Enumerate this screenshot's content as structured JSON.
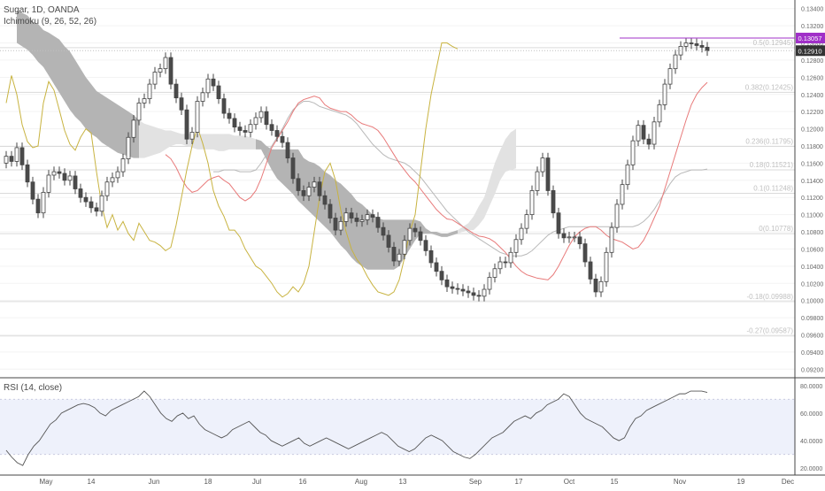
{
  "header": {
    "symbol_line": "Sugar, 1D, OANDA",
    "ichimoku_label": "Ichimoku (9, 26, 52, 26)",
    "rsi_label": "RSI (14, close)"
  },
  "price_badges": {
    "upper": "0.13057",
    "last": "0.12910"
  },
  "colors": {
    "up_candle": "#ffffff",
    "down_candle": "#4a4a4a",
    "conversion_line": "#e87a7a",
    "base_line": "#b9b9b9",
    "lagging_span": "#c8b340",
    "cloud_bear": "#b4b4b4",
    "cloud_bull": "#e2e2e2",
    "rsi_line": "#555555",
    "rsi_band": "#eef1fb",
    "fib_line": "#dadada",
    "badge_purple": "#a030c8",
    "badge_dark": "#333333"
  },
  "chart_data": {
    "type": "candlestick",
    "price_axis": {
      "ylim": [
        0.091,
        0.135
      ],
      "ticks": [
        "0.13400",
        "0.13200",
        "0.13000",
        "0.12800",
        "0.12600",
        "0.12400",
        "0.12200",
        "0.12000",
        "0.11800",
        "0.11600",
        "0.11400",
        "0.11200",
        "0.11000",
        "0.10800",
        "0.10600",
        "0.10400",
        "0.10200",
        "0.10000",
        "0.09800",
        "0.09600",
        "0.09400",
        "0.09200"
      ]
    },
    "rsi_axis": {
      "ticks": [
        "80.0000",
        "60.0000",
        "40.0000",
        "20.0000"
      ],
      "band": [
        30,
        70
      ]
    },
    "x_axis": {
      "labels": [
        "May",
        "14",
        "Jun",
        "18",
        "Jul",
        "16",
        "Aug",
        "13",
        "Sep",
        "17",
        "Oct",
        "15",
        "Nov",
        "19",
        "Dec"
      ]
    },
    "fib_levels": [
      {
        "label": "0.5(0.12945)",
        "value": 0.12945
      },
      {
        "label": "0.382(0.12425)",
        "value": 0.12425
      },
      {
        "label": "0.236(0.11795)",
        "value": 0.11795
      },
      {
        "label": "0.18(0.11521)",
        "value": 0.11521
      },
      {
        "label": "0.1(0.11248)",
        "value": 0.11248
      },
      {
        "label": "0(0.10778)",
        "value": 0.10778
      },
      {
        "label": "-0.18(0.09988)",
        "value": 0.09988
      },
      {
        "label": "-0.27(0.09587)",
        "value": 0.09587
      }
    ],
    "purple_level": 0.13057,
    "last_price": 0.1291,
    "closes": [
      0.1168,
      0.1162,
      0.1178,
      0.1158,
      0.1138,
      0.1118,
      0.1102,
      0.1126,
      0.1146,
      0.115,
      0.1148,
      0.114,
      0.1145,
      0.113,
      0.112,
      0.1115,
      0.1108,
      0.1104,
      0.1122,
      0.1138,
      0.1143,
      0.115,
      0.1165,
      0.119,
      0.121,
      0.123,
      0.1235,
      0.1252,
      0.1266,
      0.127,
      0.1283,
      0.1252,
      0.1236,
      0.1222,
      0.1188,
      0.1196,
      0.1232,
      0.1242,
      0.1258,
      0.125,
      0.1235,
      0.1218,
      0.1212,
      0.1202,
      0.1198,
      0.1196,
      0.1205,
      0.1213,
      0.122,
      0.1205,
      0.1198,
      0.1191,
      0.1184,
      0.1166,
      0.1142,
      0.1128,
      0.1122,
      0.1132,
      0.1138,
      0.1122,
      0.1112,
      0.1096,
      0.1082,
      0.1092,
      0.1102,
      0.1096,
      0.1092,
      0.1094,
      0.11,
      0.1097,
      0.1085,
      0.1076,
      0.1062,
      0.1046,
      0.1054,
      0.107,
      0.1084,
      0.108,
      0.107,
      0.1058,
      0.1044,
      0.1034,
      0.1024,
      0.1016,
      0.1014,
      0.1013,
      0.1011,
      0.1009,
      0.1006,
      0.1005,
      0.1013,
      0.1027,
      0.1037,
      0.1045,
      0.1044,
      0.1056,
      0.1071,
      0.1084,
      0.11,
      0.1128,
      0.115,
      0.1166,
      0.1128,
      0.1102,
      0.1078,
      0.1073,
      0.1074,
      0.1074,
      0.1066,
      0.1045,
      0.1025,
      0.101,
      0.1022,
      0.1056,
      0.1085,
      0.1112,
      0.1135,
      0.1158,
      0.1186,
      0.1204,
      0.1188,
      0.1182,
      0.1208,
      0.1228,
      0.1252,
      0.127,
      0.1286,
      0.1296,
      0.13,
      0.1299,
      0.1297,
      0.1295,
      0.1291
    ],
    "tenkan": [
      0.117,
      0.1165,
      0.1155,
      0.1142,
      0.1132,
      0.1126,
      0.1128,
      0.1134,
      0.114,
      0.1143,
      0.1145,
      0.114,
      0.1136,
      0.1128,
      0.112,
      0.1116,
      0.112,
      0.1128,
      0.1142,
      0.116,
      0.1178,
      0.1188,
      0.1198,
      0.1208,
      0.122,
      0.123,
      0.1234,
      0.1236,
      0.1238,
      0.1236,
      0.1228,
      0.1224,
      0.1222,
      0.122,
      0.122,
      0.1216,
      0.121,
      0.1206,
      0.1204,
      0.1202,
      0.1198,
      0.119,
      0.118,
      0.117,
      0.116,
      0.1152,
      0.1144,
      0.1138,
      0.113,
      0.1122,
      0.1114,
      0.1106,
      0.11,
      0.1095,
      0.1094,
      0.109,
      0.1086,
      0.1082,
      0.1078,
      0.1075,
      0.1074,
      0.1072,
      0.1068,
      0.1062,
      0.1056,
      0.1048,
      0.104,
      0.1034,
      0.103,
      0.1028,
      0.1026,
      0.1025,
      0.1024,
      0.103,
      0.104,
      0.1052,
      0.1064,
      0.1074,
      0.108,
      0.1084,
      0.1086,
      0.1086,
      0.1082,
      0.1076,
      0.1072,
      0.107,
      0.1068,
      0.1064,
      0.106,
      0.1062,
      0.107,
      0.1082,
      0.1096,
      0.111,
      0.113,
      0.115,
      0.117,
      0.119,
      0.121,
      0.1228,
      0.124,
      0.1248,
      0.1254
    ],
    "kijun": [
      0.115,
      0.115,
      0.1152,
      0.1152,
      0.1152,
      0.115,
      0.115,
      0.115,
      0.1152,
      0.116,
      0.117,
      0.118,
      0.119,
      0.12,
      0.1212,
      0.1222,
      0.1228,
      0.1232,
      0.1232,
      0.123,
      0.1226,
      0.1224,
      0.1222,
      0.122,
      0.1218,
      0.1216,
      0.1212,
      0.1206,
      0.1198,
      0.119,
      0.1182,
      0.1176,
      0.117,
      0.1166,
      0.1164,
      0.1162,
      0.116,
      0.1156,
      0.115,
      0.1144,
      0.1136,
      0.1128,
      0.112,
      0.1112,
      0.1104,
      0.1098,
      0.1092,
      0.1086,
      0.108,
      0.1076,
      0.1072,
      0.1068,
      0.1064,
      0.106,
      0.1056,
      0.1054,
      0.1052,
      0.1052,
      0.1052,
      0.1054,
      0.1058,
      0.1064,
      0.107,
      0.1076,
      0.108,
      0.1082,
      0.1084,
      0.1086,
      0.1086,
      0.1086,
      0.1086,
      0.1086,
      0.1086,
      0.1086,
      0.1086,
      0.1086,
      0.1086,
      0.1086,
      0.1086,
      0.1086,
      0.1088,
      0.1092,
      0.1098,
      0.1106,
      0.1116,
      0.1126,
      0.1136,
      0.1144,
      0.1148,
      0.115,
      0.1152,
      0.1152,
      0.1152,
      0.1153
    ],
    "chikou": [
      0.123,
      0.1262,
      0.124,
      0.1205,
      0.1185,
      0.1178,
      0.118,
      0.123,
      0.1255,
      0.1245,
      0.1222,
      0.1198,
      0.1182,
      0.1175,
      0.119,
      0.12,
      0.1195,
      0.115,
      0.111,
      0.1085,
      0.11,
      0.1082,
      0.1092,
      0.1078,
      0.107,
      0.109,
      0.108,
      0.107,
      0.1068,
      0.1064,
      0.1058,
      0.1062,
      0.1088,
      0.112,
      0.1152,
      0.118,
      0.1202,
      0.1183,
      0.116,
      0.1128,
      0.111,
      0.1098,
      0.1082,
      0.1082,
      0.1074,
      0.106,
      0.105,
      0.104,
      0.1036,
      0.1028,
      0.102,
      0.101,
      0.1004,
      0.1008,
      0.1016,
      0.101,
      0.102,
      0.104,
      0.108,
      0.112,
      0.115,
      0.116,
      0.114,
      0.1105,
      0.108,
      0.106,
      0.1048,
      0.104,
      0.1028,
      0.1018,
      0.101,
      0.1008,
      0.1006,
      0.101,
      0.1024,
      0.105,
      0.108,
      0.11,
      0.115,
      0.12,
      0.124,
      0.127,
      0.13,
      0.13,
      0.1296,
      0.1293
    ],
    "cloud_top": [
      0.1338,
      0.1335,
      0.1332,
      0.1325,
      0.1322,
      0.1315,
      0.1312,
      0.1308,
      0.1304,
      0.1296,
      0.129,
      0.128,
      0.127,
      0.126,
      0.1252,
      0.1244,
      0.124,
      0.1236,
      0.1232,
      0.1228,
      0.1224,
      0.122,
      0.1216,
      0.121,
      0.1206,
      0.1204,
      0.1202,
      0.12,
      0.1198,
      0.1198,
      0.1196,
      0.1194,
      0.1194,
      0.1194,
      0.1194,
      0.1194,
      0.1194,
      0.1194,
      0.1194,
      0.1194,
      0.1194,
      0.1192,
      0.1192,
      0.1192,
      0.119,
      0.1188,
      0.1186,
      0.118,
      0.1176,
      0.1176,
      0.1176,
      0.1176,
      0.1176,
      0.1176,
      0.1166,
      0.1162,
      0.116,
      0.1156,
      0.115,
      0.1146,
      0.114,
      0.1136,
      0.113,
      0.1124,
      0.1116,
      0.1112,
      0.1106,
      0.11,
      0.1096,
      0.1094,
      0.1094,
      0.1094,
      0.1094,
      0.1094,
      0.1094,
      0.1094,
      0.1092,
      0.1084,
      0.108,
      0.108,
      0.1078,
      0.1078,
      0.108,
      0.1082,
      0.1086,
      0.109,
      0.1098,
      0.111,
      0.112,
      0.114,
      0.116,
      0.1175,
      0.1188,
      0.1196,
      0.12
    ],
    "cloud_bottom": [
      0.13,
      0.1296,
      0.1292,
      0.1286,
      0.1278,
      0.1272,
      0.1262,
      0.1252,
      0.1242,
      0.1232,
      0.1222,
      0.1214,
      0.1208,
      0.12,
      0.1194,
      0.119,
      0.1184,
      0.118,
      0.1176,
      0.1172,
      0.117,
      0.1168,
      0.1166,
      0.1166,
      0.1166,
      0.1168,
      0.117,
      0.1172,
      0.1176,
      0.118,
      0.1182,
      0.1182,
      0.118,
      0.1178,
      0.1176,
      0.1176,
      0.1176,
      0.1176,
      0.1174,
      0.1174,
      0.1176,
      0.1176,
      0.1176,
      0.1176,
      0.1176,
      0.1176,
      0.1176,
      0.1164,
      0.1152,
      0.1142,
      0.1136,
      0.113,
      0.1124,
      0.1116,
      0.111,
      0.1104,
      0.1098,
      0.1092,
      0.1086,
      0.108,
      0.1072,
      0.1064,
      0.1058,
      0.105,
      0.1044,
      0.104,
      0.1036,
      0.1036,
      0.1036,
      0.1036,
      0.1036,
      0.1036,
      0.104,
      0.105,
      0.106,
      0.107,
      0.1078,
      0.1078,
      0.1078,
      0.1076,
      0.1074,
      0.1074,
      0.1076,
      0.1078,
      0.108,
      0.1082,
      0.1082,
      0.1088,
      0.1096,
      0.111,
      0.1124,
      0.114,
      0.115,
      0.1152,
      0.1154
    ],
    "rsi": [
      33,
      28,
      24,
      22,
      30,
      36,
      40,
      46,
      52,
      55,
      60,
      62,
      64,
      66,
      67,
      66,
      64,
      60,
      58,
      62,
      64,
      66,
      68,
      70,
      72,
      76,
      72,
      66,
      60,
      56,
      54,
      58,
      60,
      56,
      58,
      52,
      48,
      46,
      44,
      42,
      44,
      48,
      50,
      52,
      54,
      50,
      46,
      44,
      40,
      38,
      36,
      38,
      40,
      42,
      38,
      36,
      38,
      40,
      42,
      40,
      38,
      36,
      34,
      36,
      38,
      40,
      42,
      44,
      46,
      44,
      40,
      36,
      34,
      32,
      34,
      38,
      42,
      44,
      42,
      40,
      36,
      32,
      30,
      28,
      27,
      30,
      34,
      38,
      42,
      44,
      46,
      50,
      54,
      56,
      58,
      56,
      60,
      62,
      66,
      68,
      70,
      74,
      72,
      66,
      60,
      56,
      54,
      52,
      50,
      46,
      42,
      40,
      42,
      50,
      56,
      58,
      62,
      64,
      66,
      68,
      70,
      72,
      74,
      74,
      76,
      76,
      76,
      75
    ]
  }
}
